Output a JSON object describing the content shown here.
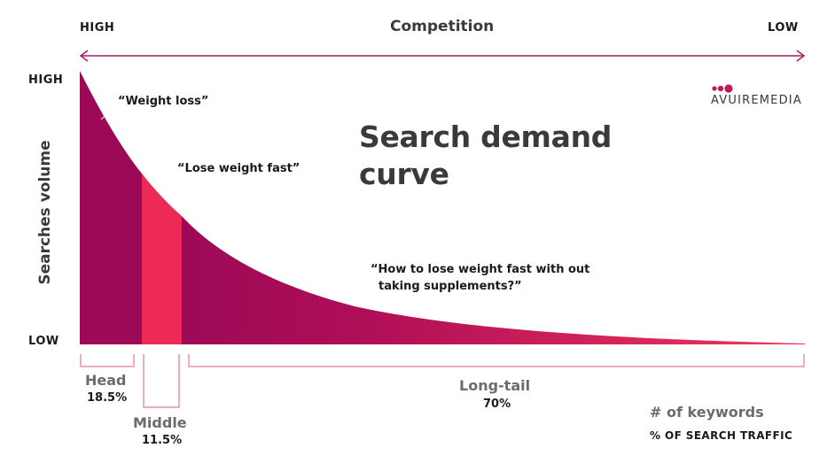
{
  "top_axis": {
    "left_label": "HIGH",
    "title": "Competition",
    "right_label": "LOW"
  },
  "left_axis": {
    "top_label": "HIGH",
    "title": "Searches volume",
    "bottom_label": "LOW"
  },
  "brand": {
    "name": "AVUIREMEDIA",
    "color": "#c2185b"
  },
  "title": {
    "line1": "Search demand",
    "line2": "curve"
  },
  "keywords": {
    "head": "“Weight loss”",
    "middle": "“Lose weight fast”",
    "longtail_line1": "“How to lose weight fast with out",
    "longtail_line2": "taking supplements?”"
  },
  "segments": [
    {
      "name": "Head",
      "share": "18.5%"
    },
    {
      "name": "Middle",
      "share": "11.5%"
    },
    {
      "name": "Long-tail",
      "share": "70%"
    }
  ],
  "legend": {
    "line1": "# of keywords",
    "line2": "% OF SEARCH TRAFFIC"
  },
  "colors": {
    "dark_magenta": "#9c0a57",
    "middle_pink": "#ec2a55",
    "tail_pink": "#e7305a",
    "arrow": "#a01f63",
    "bracket": "#e07a99"
  }
}
